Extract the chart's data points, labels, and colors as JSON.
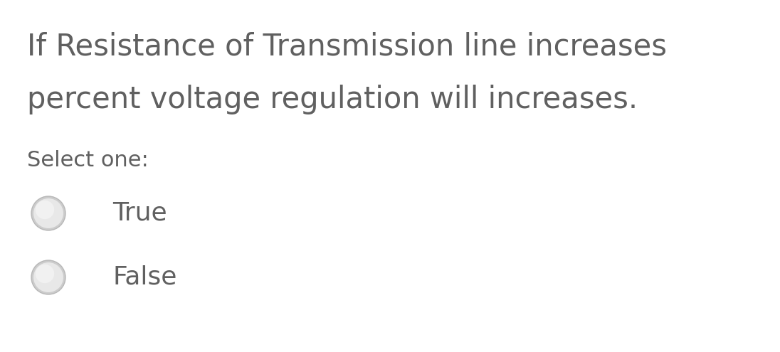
{
  "background_color": "#ffffff",
  "question_line1": "If Resistance of Transmission line increases",
  "question_line2": "percent voltage regulation will increases.",
  "select_label": "Select one:",
  "options": [
    "True",
    "False"
  ],
  "question_color": "#606060",
  "select_color": "#606060",
  "option_color": "#606060",
  "question_fontsize": 30,
  "select_fontsize": 22,
  "option_fontsize": 26,
  "radio_face_color": "#e0e0e0",
  "radio_edge_color": "#c0c0c0"
}
